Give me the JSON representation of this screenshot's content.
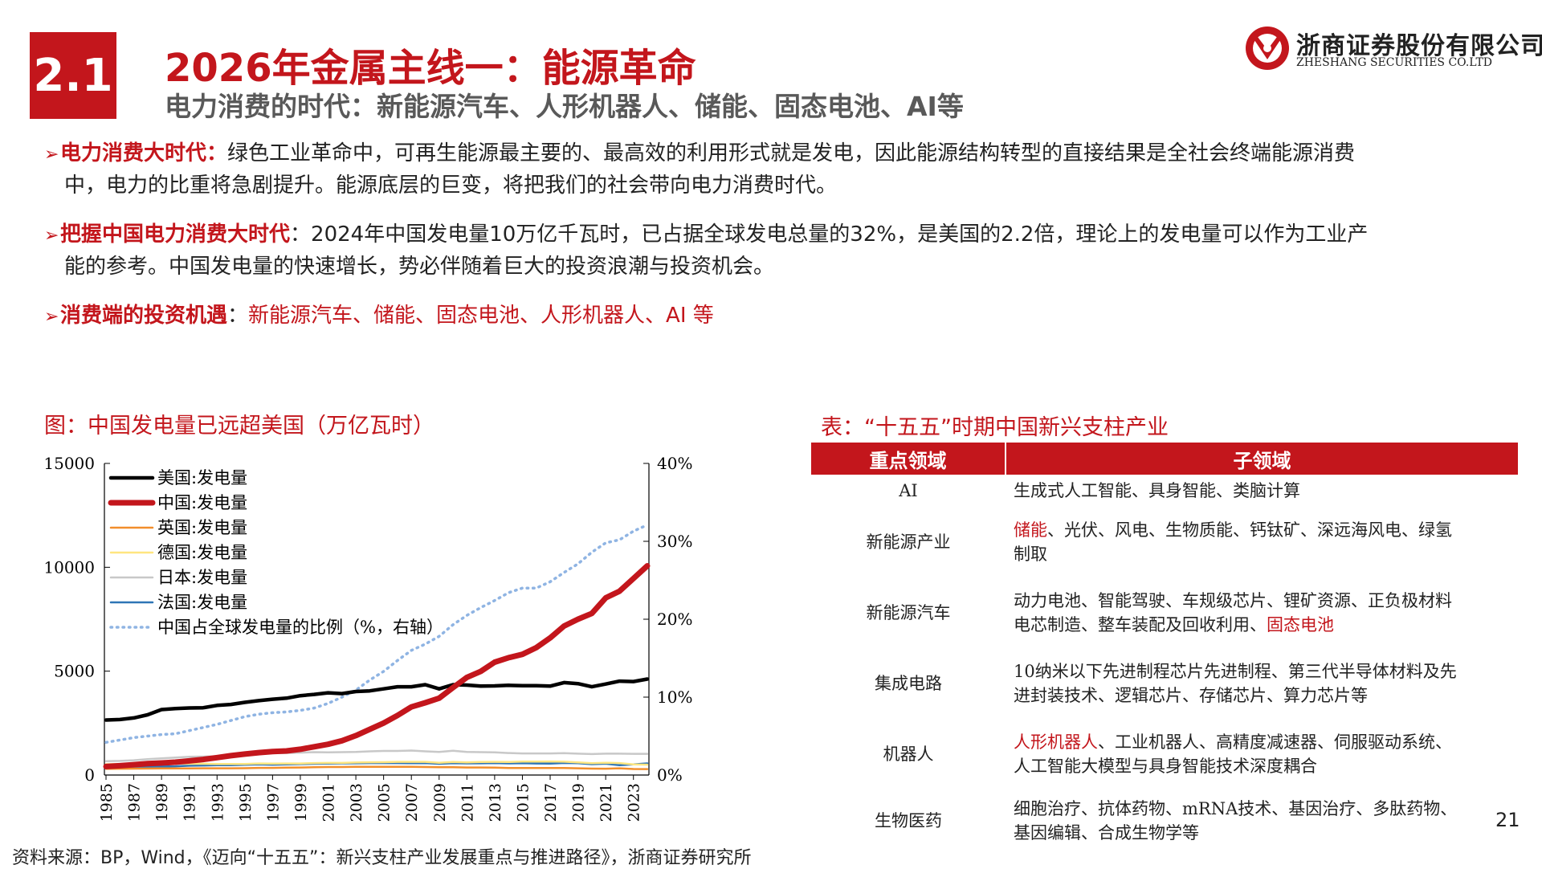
{
  "header": {
    "section_number": "2.1",
    "title": "2026年金属主线一：能源革命",
    "subtitle": "电力消费的时代：新能源汽车、人形机器人、储能、固态电池、AI等",
    "logo_cn": "浙商证券股份有限公司",
    "logo_en": "ZHESHANG SECURITIES CO.LTD"
  },
  "bullets": [
    {
      "key": "电力消费大时代",
      "sep": "：",
      "line1": "绿色工业革命中，可再生能源最主要的、最高效的利用形式就是发电，因此能源结构转型的直接结果是全社会终端能源消费",
      "line2": "中，电力的比重将急剧提升。能源底层的巨变，将把我们的社会带向电力消费时代。"
    },
    {
      "key": "把握中国电力消费大时代",
      "sep": "：",
      "line1": "2024年中国发电量10万亿千瓦时，已占据全球发电总量的32%，是美国的2.2倍，理论上的发电量可以作为工业产",
      "line2": "能的参考。中国发电量的快速增长，势必伴随着巨大的投资浪潮与投资机会。"
    },
    {
      "key": "消费端的投资机遇",
      "sep": "：",
      "line1": "新能源汽车、储能、固态电池、人形机器人、AI 等",
      "line2": ""
    }
  ],
  "chart_caption": "图：中国发电量已远超美国（万亿瓦时）",
  "chart_data": {
    "type": "line",
    "title": "",
    "xlabel": "",
    "ylabel": "",
    "x": [
      1985,
      1986,
      1987,
      1988,
      1989,
      1990,
      1991,
      1992,
      1993,
      1994,
      1995,
      1996,
      1997,
      1998,
      1999,
      2000,
      2001,
      2002,
      2003,
      2004,
      2005,
      2006,
      2007,
      2008,
      2009,
      2010,
      2011,
      2012,
      2013,
      2014,
      2015,
      2016,
      2017,
      2018,
      2019,
      2020,
      2021,
      2022,
      2023,
      2024
    ],
    "x_ticks": [
      "1985",
      "1987",
      "1989",
      "1991",
      "1993",
      "1995",
      "1997",
      "1999",
      "2001",
      "2003",
      "2005",
      "2007",
      "2009",
      "2011",
      "2013",
      "2015",
      "2017",
      "2019",
      "2021",
      "2023"
    ],
    "ylim": [
      0,
      15000
    ],
    "y_ticks": [
      "0",
      "5000",
      "10000",
      "15000"
    ],
    "y2lim": [
      0,
      40
    ],
    "y2_ticks": [
      "0%",
      "10%",
      "20%",
      "30%",
      "40%"
    ],
    "legend_position": "top-left",
    "grid": false,
    "series": [
      {
        "name": "美国:发电量",
        "axis": "left",
        "color": "#000000",
        "style": "solid-thick",
        "values": [
          2650,
          2670,
          2750,
          2900,
          3150,
          3200,
          3230,
          3240,
          3350,
          3400,
          3500,
          3580,
          3650,
          3700,
          3820,
          3880,
          3960,
          3920,
          4020,
          4050,
          4150,
          4250,
          4250,
          4350,
          4150,
          4350,
          4330,
          4280,
          4290,
          4320,
          4300,
          4300,
          4280,
          4450,
          4400,
          4250,
          4380,
          4520,
          4500,
          4620
        ]
      },
      {
        "name": "中国:发电量",
        "axis": "left",
        "color": "#c3161c",
        "style": "solid-thicker",
        "values": [
          410,
          450,
          500,
          550,
          580,
          620,
          680,
          750,
          840,
          930,
          1010,
          1080,
          1130,
          1160,
          1240,
          1360,
          1480,
          1650,
          1900,
          2200,
          2500,
          2870,
          3280,
          3480,
          3700,
          4210,
          4700,
          4990,
          5430,
          5650,
          5810,
          6130,
          6600,
          7170,
          7500,
          7780,
          8530,
          8850,
          9460,
          10070
        ]
      },
      {
        "name": "英国:发电量",
        "axis": "left",
        "color": "#f28e2b",
        "style": "solid-thin",
        "values": [
          300,
          305,
          310,
          315,
          320,
          320,
          322,
          325,
          325,
          325,
          330,
          345,
          345,
          360,
          365,
          375,
          385,
          385,
          395,
          395,
          400,
          395,
          395,
          385,
          375,
          380,
          365,
          365,
          360,
          335,
          340,
          340,
          335,
          335,
          325,
          310,
          305,
          325,
          290,
          285
        ]
      },
      {
        "name": "德国:发电量",
        "axis": "left",
        "color": "#ffe680",
        "style": "solid-thin",
        "values": [
          520,
          530,
          540,
          550,
          560,
          550,
          540,
          540,
          530,
          530,
          535,
          555,
          550,
          555,
          555,
          575,
          585,
          585,
          605,
          615,
          620,
          635,
          635,
          635,
          590,
          630,
          610,
          630,
          635,
          625,
          645,
          650,
          655,
          640,
          610,
          570,
          590,
          575,
          515,
          500
        ]
      },
      {
        "name": "日本:发电量",
        "axis": "left",
        "color": "#c8c8c8",
        "style": "solid-thin",
        "values": [
          670,
          680,
          710,
          760,
          800,
          840,
          880,
          890,
          900,
          960,
          1000,
          1020,
          1050,
          1060,
          1080,
          1100,
          1090,
          1100,
          1110,
          1140,
          1160,
          1160,
          1180,
          1140,
          1110,
          1170,
          1110,
          1100,
          1090,
          1060,
          1040,
          1040,
          1040,
          1050,
          1030,
          1010,
          1030,
          1030,
          1020,
          1020
        ]
      },
      {
        "name": "法国:发电量",
        "axis": "left",
        "color": "#2e75b6",
        "style": "solid-thin",
        "values": [
          340,
          355,
          375,
          390,
          410,
          420,
          450,
          460,
          470,
          475,
          490,
          510,
          500,
          510,
          525,
          540,
          550,
          560,
          565,
          575,
          575,
          575,
          570,
          575,
          540,
          570,
          560,
          565,
          575,
          560,
          570,
          555,
          550,
          580,
          570,
          520,
          545,
          475,
          510,
          560
        ]
      },
      {
        "name": "中国占全球发电量的比例（%，右轴）",
        "axis": "right",
        "color": "#8fb4e3",
        "style": "dotted",
        "values": [
          4.2,
          4.5,
          4.8,
          5.0,
          5.2,
          5.3,
          5.7,
          6.1,
          6.5,
          7.0,
          7.5,
          7.8,
          8.0,
          8.1,
          8.3,
          8.6,
          9.2,
          10.0,
          10.9,
          12.2,
          13.3,
          14.7,
          16.0,
          16.8,
          17.8,
          19.3,
          20.5,
          21.5,
          22.4,
          23.4,
          24.0,
          24.0,
          24.8,
          26.0,
          27.1,
          28.6,
          29.8,
          30.2,
          31.3,
          32.1
        ]
      }
    ]
  },
  "table": {
    "caption": "表：“十五五”时期中国新兴支柱产业",
    "headers": [
      "重点领域",
      "子领域"
    ],
    "rows": [
      {
        "area": "AI",
        "area_red": true,
        "line1_pre": "",
        "line1_hl": "",
        "line1": "生成式人工智能、具身智能、类脑计算",
        "line2_pre": "",
        "line2_hl": ""
      },
      {
        "area": "新能源产业",
        "area_red": false,
        "line1_pre": "",
        "line1_hl": "储能",
        "line1": "、光伏、风电、生物质能、钙钛矿、深远海风电、绿氢",
        "line2_pre": "制取",
        "line2_hl": ""
      },
      {
        "area": "新能源汽车",
        "area_red": false,
        "line1_pre": "",
        "line1_hl": "",
        "line1": "动力电池、智能驾驶、车规级芯片、锂矿资源、正负极材料",
        "line2_pre": "电芯制造、整车装配及回收利用、",
        "line2_hl": "固态电池"
      },
      {
        "area": "集成电路",
        "area_red": false,
        "line1_pre": "",
        "line1_hl": "",
        "line1": "10纳米以下先进制程芯片先进制程、第三代半导体材料及先",
        "line2_pre": "进封装技术、逻辑芯片、存储芯片、算力芯片等",
        "line2_hl": ""
      },
      {
        "area": "机器人",
        "area_red": false,
        "line1_pre": "",
        "line1_hl": "人形机器人",
        "line1": "、工业机器人、高精度减速器、伺服驱动系统、",
        "line2_pre": "人工智能大模型与具身智能技术深度耦合",
        "line2_hl": ""
      },
      {
        "area": "生物医药",
        "area_red": false,
        "line1_pre": "",
        "line1_hl": "",
        "line1": "细胞治疗、抗体药物、mRNA技术、基因治疗、多肽药物、",
        "line2_pre": "基因编辑、合成生物学等",
        "line2_hl": ""
      }
    ]
  },
  "page_number": "21",
  "source_note": "资料来源：BP，Wind，《迈向“十五五”：新兴支柱产业发展重点与推进路径》，浙商证券研究所",
  "colors": {
    "brand_red": "#c3161c"
  }
}
